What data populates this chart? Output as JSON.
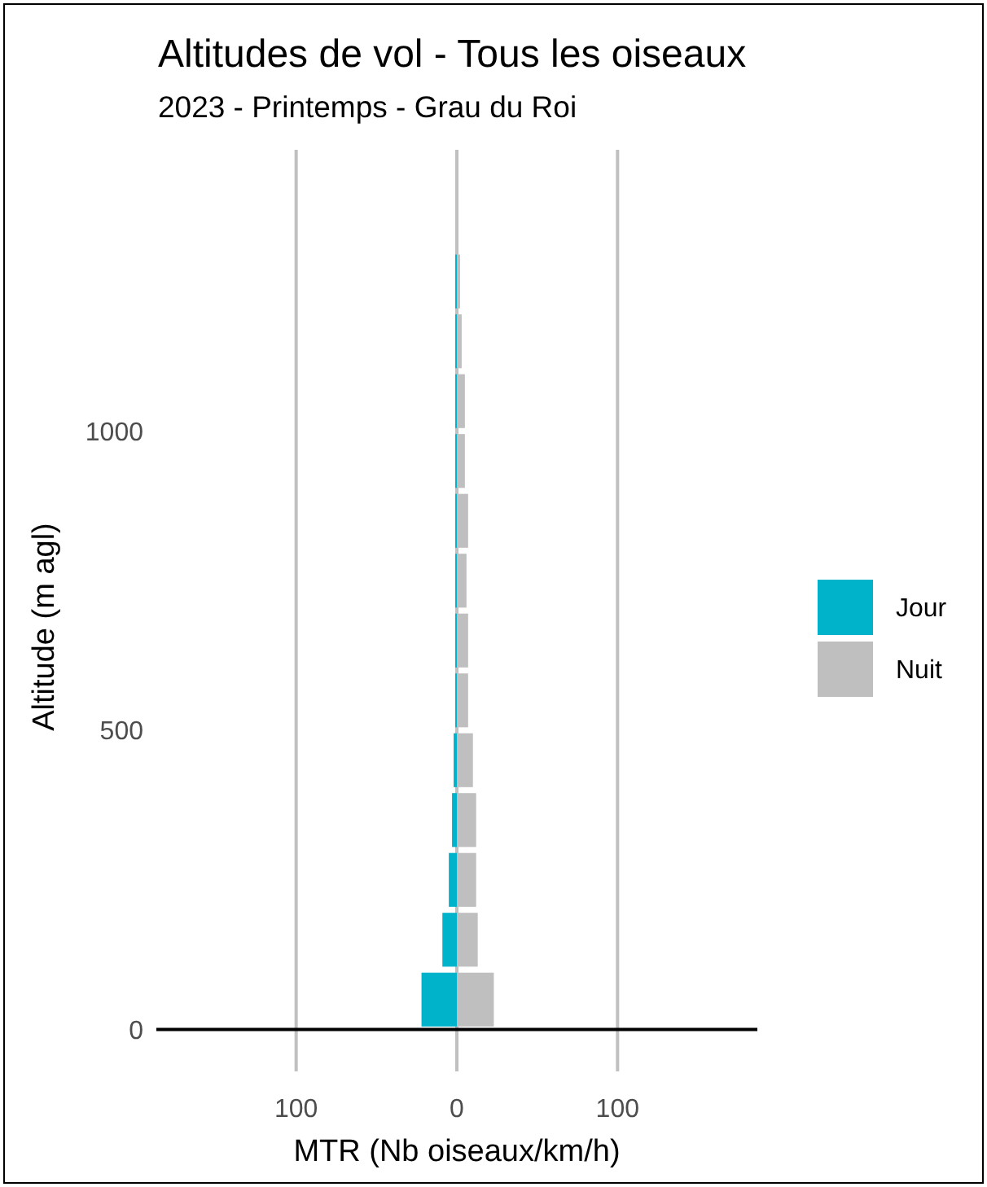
{
  "chart_data": {
    "type": "bar",
    "orientation": "horizontal",
    "title": "Altitudes de vol - Tous les oiseaux",
    "subtitle": "2023 - Printemps - Grau du Roi",
    "xlabel": "MTR (Nb oiseaux/km/h)",
    "ylabel": "Altitude (m agl)",
    "x": [
      50,
      150,
      250,
      350,
      450,
      550,
      650,
      750,
      850,
      950,
      1050,
      1150,
      1250
    ],
    "series": [
      {
        "name": "Jour",
        "color": "#00b2ca",
        "values": [
          -22,
          -9,
          -5,
          -3,
          -2,
          -1,
          -1,
          -1,
          -1,
          -1,
          -1,
          -1,
          -1
        ]
      },
      {
        "name": "Nuit",
        "color": "#bfbfbf",
        "values": [
          23,
          13,
          12,
          12,
          10,
          7,
          7,
          6,
          7,
          5,
          5,
          3,
          2
        ]
      }
    ],
    "xlim": [
      -187,
      187
    ],
    "xticks": [
      {
        "value": -100,
        "label": "100"
      },
      0,
      100
    ],
    "ylim": [
      -70,
      1470
    ],
    "yticks": [
      0,
      500,
      1000
    ],
    "grid": "x",
    "legend": "right"
  }
}
